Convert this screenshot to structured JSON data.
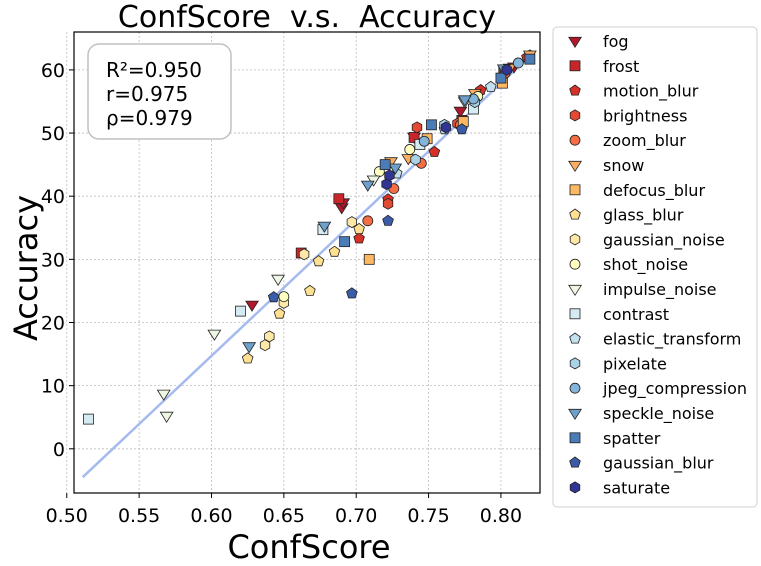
{
  "chart_data": {
    "type": "scatter",
    "title": "ConfScore  v.s.  Accuracy",
    "xlabel": "ConfScore",
    "ylabel": "Accuracy",
    "xlim": [
      0.505,
      0.827
    ],
    "ylim": [
      -7,
      66
    ],
    "xticks": [
      "0.50",
      "0.55",
      "0.60",
      "0.65",
      "0.70",
      "0.75",
      "0.80"
    ],
    "yticks": [
      "0",
      "10",
      "20",
      "30",
      "40",
      "50",
      "60"
    ],
    "grid": true,
    "legend_position": "right, outside plot",
    "stats": [
      "R²=0.950",
      "r=0.975",
      "ρ=0.979"
    ],
    "fit_line": {
      "x": [
        0.511,
        0.82
      ],
      "y": [
        -4.5,
        62.2
      ],
      "color": "#a5bbee"
    },
    "series": [
      {
        "name": "fog",
        "marker": "triangle-down",
        "color": "#b2182b",
        "points": [
          [
            0.628,
            22.8
          ],
          [
            0.69,
            38.2
          ],
          [
            0.691,
            39.0
          ],
          [
            0.74,
            49.4
          ],
          [
            0.772,
            53.5
          ],
          [
            0.809,
            60.5
          ]
        ]
      },
      {
        "name": "frost",
        "marker": "square",
        "color": "#c9262b",
        "points": [
          [
            0.662,
            31.0
          ],
          [
            0.688,
            39.6
          ],
          [
            0.74,
            49.3
          ],
          [
            0.773,
            52.0
          ],
          [
            0.802,
            59.8
          ]
        ]
      },
      {
        "name": "motion_blur",
        "marker": "pentagon",
        "color": "#d73027",
        "points": [
          [
            0.702,
            33.3
          ],
          [
            0.722,
            39.5
          ],
          [
            0.754,
            47.0
          ],
          [
            0.786,
            56.8
          ],
          [
            0.818,
            62.0
          ]
        ]
      },
      {
        "name": "brightness",
        "marker": "hexagon",
        "color": "#e34a33",
        "points": [
          [
            0.722,
            38.8
          ],
          [
            0.742,
            50.9
          ],
          [
            0.77,
            51.5
          ],
          [
            0.802,
            60.0
          ],
          [
            0.82,
            62.3
          ]
        ]
      },
      {
        "name": "zoom_blur",
        "marker": "circle",
        "color": "#f46d43",
        "points": [
          [
            0.708,
            36.1
          ],
          [
            0.726,
            41.2
          ],
          [
            0.745,
            45.2
          ],
          [
            0.772,
            51.3
          ],
          [
            0.803,
            59.5
          ]
        ]
      },
      {
        "name": "snow",
        "marker": "triangle-down",
        "color": "#fdae61",
        "points": [
          [
            0.724,
            45.5
          ],
          [
            0.736,
            46.0
          ],
          [
            0.782,
            56.3
          ],
          [
            0.806,
            60.3
          ],
          [
            0.82,
            62.4
          ]
        ]
      },
      {
        "name": "defocus_blur",
        "marker": "square",
        "color": "#fdb863",
        "points": [
          [
            0.709,
            30.0
          ],
          [
            0.749,
            49.1
          ],
          [
            0.774,
            51.8
          ],
          [
            0.801,
            57.9
          ]
        ]
      },
      {
        "name": "glass_blur",
        "marker": "pentagon",
        "color": "#fee090",
        "points": [
          [
            0.625,
            14.3
          ],
          [
            0.647,
            21.4
          ],
          [
            0.668,
            25.0
          ],
          [
            0.674,
            29.7
          ],
          [
            0.685,
            31.2
          ],
          [
            0.702,
            34.8
          ]
        ]
      },
      {
        "name": "gaussian_noise",
        "marker": "hexagon",
        "color": "#fee8a6",
        "points": [
          [
            0.637,
            16.4
          ],
          [
            0.64,
            17.8
          ],
          [
            0.65,
            23.1
          ],
          [
            0.664,
            30.8
          ],
          [
            0.697,
            35.9
          ]
        ]
      },
      {
        "name": "shot_noise",
        "marker": "circle",
        "color": "#ffffbf",
        "points": [
          [
            0.65,
            24.1
          ],
          [
            0.716,
            43.9
          ],
          [
            0.737,
            47.4
          ],
          [
            0.784,
            55.8
          ]
        ]
      },
      {
        "name": "impulse_noise",
        "marker": "triangle-down",
        "color": "#eef6e4",
        "points": [
          [
            0.567,
            8.7
          ],
          [
            0.569,
            5.2
          ],
          [
            0.602,
            18.2
          ],
          [
            0.646,
            26.9
          ],
          [
            0.712,
            42.6
          ],
          [
            0.775,
            55.0
          ]
        ]
      },
      {
        "name": "contrast",
        "marker": "square",
        "color": "#d4ebf2",
        "points": [
          [
            0.515,
            4.7
          ],
          [
            0.62,
            21.8
          ],
          [
            0.677,
            34.7
          ],
          [
            0.744,
            48.2
          ],
          [
            0.781,
            53.8
          ]
        ]
      },
      {
        "name": "elastic_transform",
        "marker": "pentagon",
        "color": "#c3e0ee",
        "points": [
          [
            0.728,
            43.6
          ],
          [
            0.761,
            50.6
          ],
          [
            0.793,
            57.3
          ]
        ]
      },
      {
        "name": "pixelate",
        "marker": "hexagon",
        "color": "#a9d2e7",
        "points": [
          [
            0.741,
            45.8
          ],
          [
            0.761,
            51.3
          ],
          [
            0.782,
            54.9
          ]
        ]
      },
      {
        "name": "jpeg_compression",
        "marker": "circle",
        "color": "#82b5d9",
        "points": [
          [
            0.747,
            48.7
          ],
          [
            0.781,
            55.4
          ],
          [
            0.812,
            61.1
          ]
        ]
      },
      {
        "name": "speckle_noise",
        "marker": "triangle-down",
        "color": "#6fa0cb",
        "points": [
          [
            0.626,
            16.2
          ],
          [
            0.678,
            35.3
          ],
          [
            0.708,
            41.8
          ],
          [
            0.727,
            44.5
          ],
          [
            0.775,
            55.3
          ],
          [
            0.802,
            60.2
          ]
        ]
      },
      {
        "name": "spatter",
        "marker": "square",
        "color": "#4a7cb8",
        "points": [
          [
            0.692,
            32.8
          ],
          [
            0.72,
            45.0
          ],
          [
            0.752,
            51.3
          ],
          [
            0.8,
            58.7
          ],
          [
            0.82,
            61.7
          ]
        ]
      },
      {
        "name": "gaussian_blur",
        "marker": "pentagon",
        "color": "#3b5ca8",
        "points": [
          [
            0.643,
            24.0
          ],
          [
            0.697,
            24.6
          ],
          [
            0.722,
            36.1
          ],
          [
            0.773,
            50.6
          ]
        ]
      },
      {
        "name": "saturate",
        "marker": "hexagon",
        "color": "#313695",
        "points": [
          [
            0.721,
            41.9
          ],
          [
            0.723,
            43.3
          ],
          [
            0.762,
            50.9
          ],
          [
            0.804,
            60.0
          ]
        ]
      }
    ]
  }
}
